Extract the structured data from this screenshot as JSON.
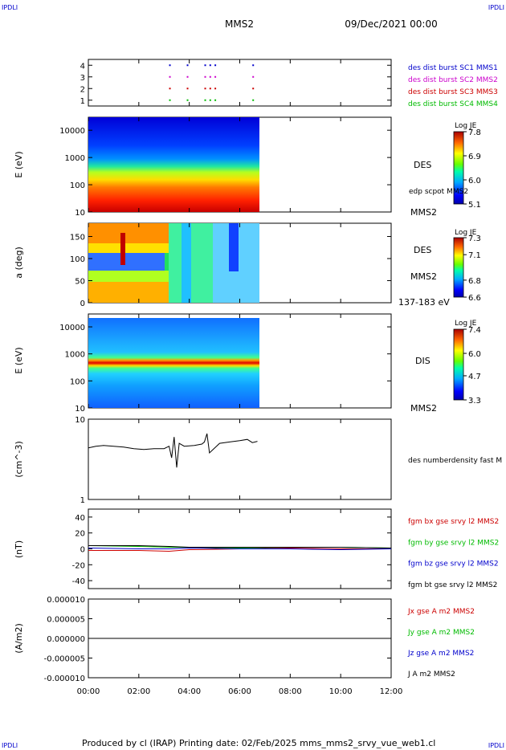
{
  "header": {
    "corner_tl": "IPDLI",
    "corner_tr": "IPDLI",
    "corner_bl": "IPDLI",
    "corner_br": "IPDLI",
    "spacecraft": "MMS2",
    "datetime": "09/Dec/2021 00:00"
  },
  "footer": {
    "text": "Produced by cl (IRAP)   Printing date: 02/Feb/2025   mms_mms2_srvy_vue_web1.cl"
  },
  "time_axis": {
    "ticks": [
      "00:00",
      "02:00",
      "04:00",
      "06:00",
      "08:00",
      "10:00",
      "12:00"
    ],
    "range_hours": [
      0,
      12
    ]
  },
  "chart_data": [
    {
      "type": "scatter",
      "title": "",
      "ylabel": "",
      "ylim": [
        0.5,
        4.5
      ],
      "yticks": [
        "1",
        "2",
        "3",
        "4"
      ],
      "legend": [
        {
          "label": "des dist burst SC1 MMS1",
          "color": "#0000cc"
        },
        {
          "label": "des dist burst SC2 MMS2",
          "color": "#cc00cc"
        },
        {
          "label": "des dist burst SC3 MMS3",
          "color": "#cc0000"
        },
        {
          "label": "des dist burst SC4 MMS4",
          "color": "#00bb00"
        }
      ],
      "series": [
        {
          "x": [
            3.2,
            3.9,
            4.6,
            4.8,
            5.0,
            6.5
          ]
        },
        {
          "x": [
            3.2,
            3.9,
            4.6,
            4.8,
            5.0,
            6.5
          ]
        },
        {
          "x": [
            3.2,
            3.9,
            4.6,
            4.8,
            5.0,
            6.5
          ]
        },
        {
          "x": [
            3.2,
            3.9,
            4.6,
            4.8,
            5.0,
            6.5
          ]
        }
      ]
    },
    {
      "type": "heatmap",
      "ylabel": "E (eV)",
      "yscale": "log",
      "ylim": [
        10,
        30000
      ],
      "yticks": [
        "10",
        "100",
        "1000",
        "10000"
      ],
      "data_x_range": [
        0,
        6.8
      ],
      "label_top": "DES",
      "label_side": "edp scpot MMS2",
      "label_bottom": "MMS2",
      "colorbar": {
        "title": "Log JE",
        "ticks": [
          "7.8",
          "6.9",
          "6.0",
          "5.1"
        ],
        "range": [
          5.1,
          7.8
        ]
      }
    },
    {
      "type": "heatmap",
      "ylabel": "a (deg)",
      "ylim": [
        0,
        180
      ],
      "yticks": [
        "0",
        "50",
        "100",
        "150"
      ],
      "data_x_range": [
        0,
        6.8
      ],
      "label_top": "DES",
      "label_mid": "MMS2",
      "label_bottom": "137-183 eV",
      "colorbar": {
        "title": "Log JE",
        "ticks": [
          "7.3",
          "7.1",
          "6.8",
          "6.6"
        ],
        "range": [
          6.6,
          7.3
        ]
      }
    },
    {
      "type": "heatmap",
      "ylabel": "E (eV)",
      "yscale": "log",
      "ylim": [
        10,
        30000
      ],
      "yticks": [
        "10",
        "100",
        "1000",
        "10000"
      ],
      "data_x_range": [
        0,
        6.8
      ],
      "label_top": "DIS",
      "label_bottom": "MMS2",
      "colorbar": {
        "title": "Log JE",
        "ticks": [
          "7.4",
          "6.0",
          "4.7",
          "3.3"
        ],
        "range": [
          3.3,
          7.4
        ]
      }
    },
    {
      "type": "line",
      "ylabel": "(cm^-3)",
      "yscale": "log",
      "ylim": [
        1,
        10
      ],
      "yticks": [
        "1",
        "10"
      ],
      "legend": [
        {
          "label": "des numberdensity fast M",
          "color": "#000000"
        }
      ],
      "series": [
        {
          "name": "des numberdensity fast M",
          "x": [
            0.0,
            0.3,
            0.6,
            1.0,
            1.4,
            1.8,
            2.2,
            2.6,
            3.0,
            3.2,
            3.3,
            3.4,
            3.5,
            3.6,
            3.8,
            4.2,
            4.5,
            4.6,
            4.7,
            4.8,
            5.2,
            5.6,
            6.0,
            6.3,
            6.5,
            6.7
          ],
          "y": [
            4.4,
            4.6,
            4.7,
            4.6,
            4.5,
            4.3,
            4.2,
            4.3,
            4.3,
            4.6,
            3.3,
            6.0,
            2.5,
            5.0,
            4.6,
            4.7,
            4.9,
            5.2,
            6.6,
            3.8,
            5.0,
            5.2,
            5.4,
            5.6,
            5.1,
            5.3
          ]
        }
      ]
    },
    {
      "type": "line",
      "ylabel": "(nT)",
      "ylim": [
        -50,
        50
      ],
      "yticks": [
        "-40",
        "-20",
        "0",
        "20",
        "40"
      ],
      "legend": [
        {
          "label": "fgm bx gse srvy l2 MMS2",
          "color": "#cc0000"
        },
        {
          "label": "fgm by gse srvy l2 MMS2",
          "color": "#00bb00"
        },
        {
          "label": "fgm bz gse srvy l2 MMS2",
          "color": "#0000cc"
        },
        {
          "label": "fgm bt gse srvy l2 MMS2",
          "color": "#000000"
        }
      ],
      "series": [
        {
          "name": "fgm bx gse srvy l2 MMS2",
          "x": [
            0,
            2,
            3.2,
            4,
            6,
            8,
            10,
            12
          ],
          "y": [
            -2,
            -2,
            -3,
            -1,
            0,
            1,
            0,
            0
          ]
        },
        {
          "name": "fgm by gse srvy l2 MMS2",
          "x": [
            0,
            2,
            3.2,
            4,
            6,
            8,
            10,
            12
          ],
          "y": [
            4,
            3,
            2,
            2,
            1,
            2,
            2,
            1
          ]
        },
        {
          "name": "fgm bz gse srvy l2 MMS2",
          "x": [
            0,
            2,
            3.2,
            4,
            6,
            8,
            10,
            12
          ],
          "y": [
            1,
            0,
            0,
            1,
            0,
            0,
            -1,
            0
          ]
        },
        {
          "name": "fgm bt gse srvy l2 MMS2",
          "x": [
            0,
            2,
            3.2,
            4,
            6,
            8,
            10,
            12
          ],
          "y": [
            4,
            4,
            3,
            2,
            2,
            2,
            2,
            1
          ]
        }
      ]
    },
    {
      "type": "line",
      "ylabel": "(A/m2)",
      "ylim": [
        -1e-05,
        1e-05
      ],
      "yticks": [
        "-0.000010",
        "-0.000005",
        "0.000000",
        "0.000005",
        "0.000010"
      ],
      "legend": [
        {
          "label": "Jx gse A m2 MMS2",
          "color": "#cc0000"
        },
        {
          "label": "Jy gse A m2 MMS2",
          "color": "#00bb00"
        },
        {
          "label": "Jz gse A m2 MMS2",
          "color": "#0000cc"
        },
        {
          "label": "J A m2 MMS2",
          "color": "#000000"
        }
      ],
      "series": [
        {
          "name": "J A m2 MMS2",
          "x": [
            0,
            12
          ],
          "y": [
            0,
            0
          ]
        }
      ]
    }
  ]
}
